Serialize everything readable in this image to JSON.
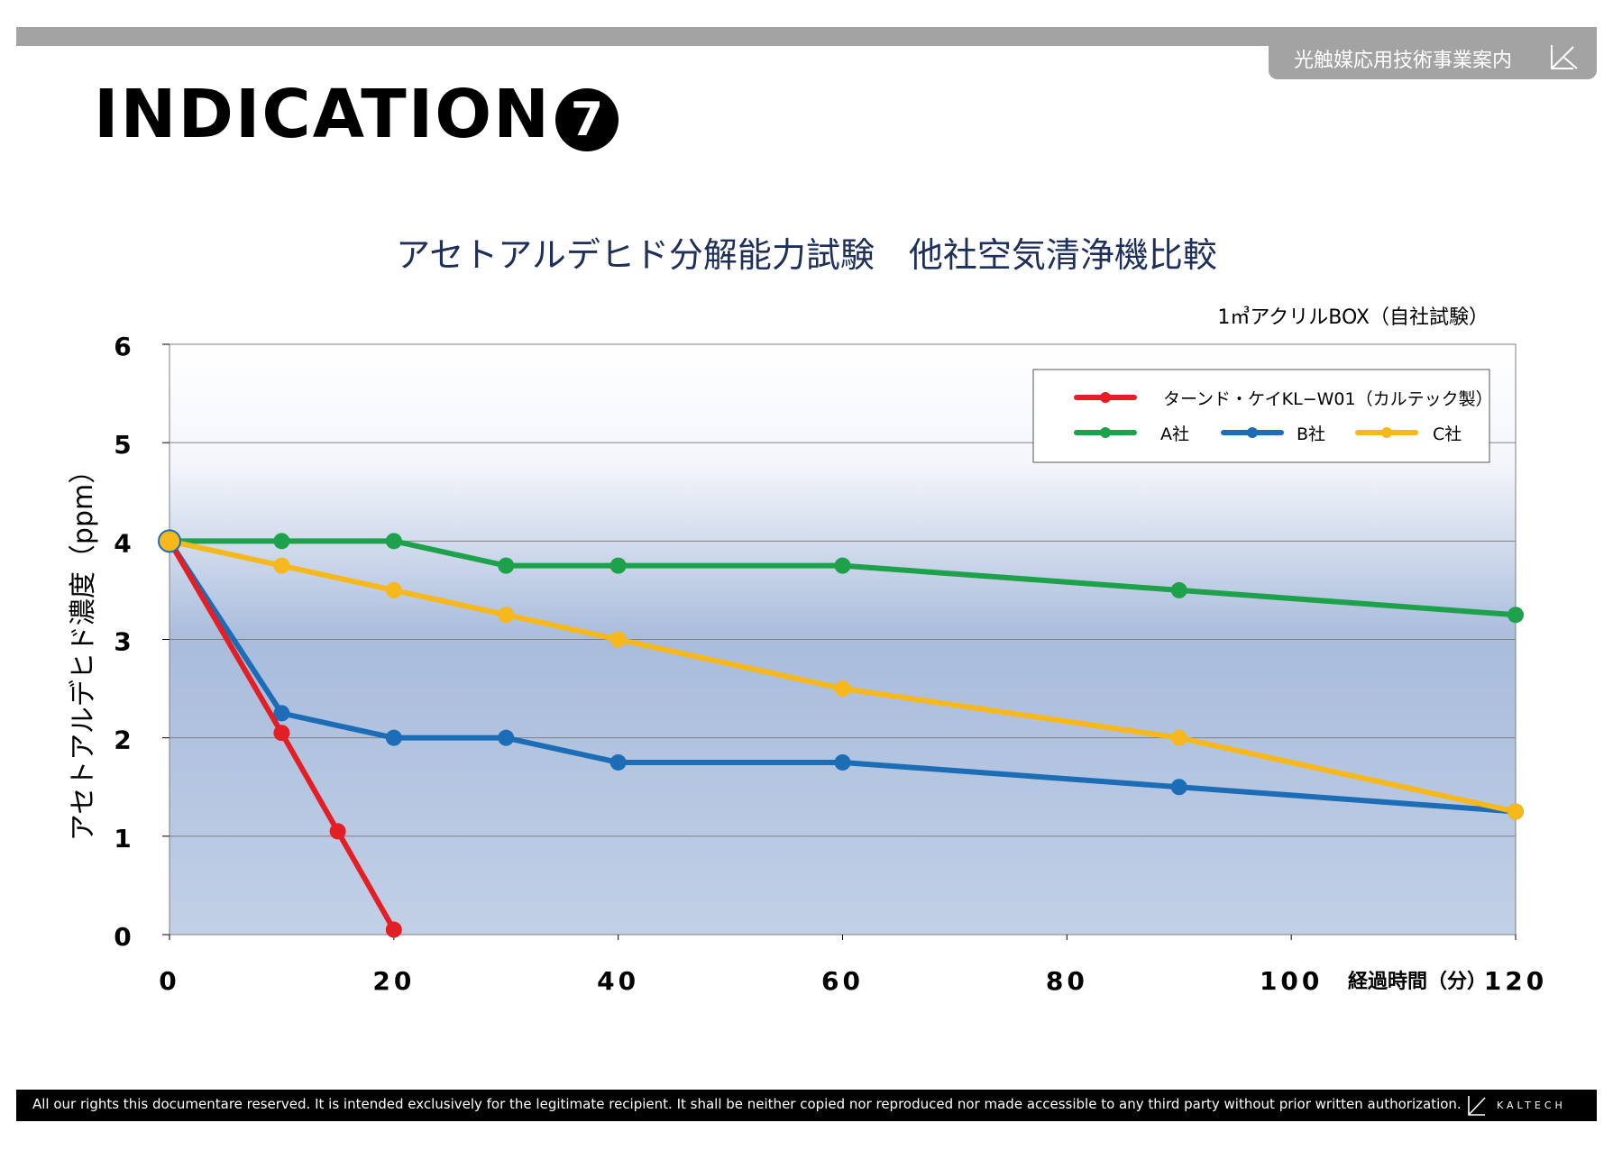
{
  "header": {
    "tab_label": "光触媒応用技術事業案内",
    "title": "INDICATION",
    "badge": "7"
  },
  "chart_data": {
    "type": "line",
    "title": "アセトアルデヒド分解能力試験　他社空気清浄機比較",
    "note": "1㎥アクリルBOX（自社試験）",
    "ylabel": "アセトアルデヒド濃度（ppm）",
    "xlabel": "経過時間（分）",
    "xlim": [
      0,
      120
    ],
    "ylim": [
      0,
      6
    ],
    "xticks": [
      0,
      20,
      40,
      60,
      80,
      100,
      120
    ],
    "yticks": [
      0,
      1,
      2,
      3,
      4,
      5,
      6
    ],
    "grid": true,
    "legend": "top-right",
    "series": [
      {
        "name": "ターンド・ケイKL−W01（カルテック製）",
        "color": "#e31e24",
        "x": [
          0,
          10,
          15,
          20
        ],
        "y": [
          4.0,
          2.05,
          1.05,
          0.05
        ]
      },
      {
        "name": "A社",
        "color": "#1da14b",
        "x": [
          0,
          10,
          20,
          30,
          40,
          60,
          90,
          120
        ],
        "y": [
          4.0,
          4.0,
          4.0,
          3.75,
          3.75,
          3.75,
          3.5,
          3.25
        ]
      },
      {
        "name": "B社",
        "color": "#1c6db5",
        "x": [
          0,
          10,
          20,
          30,
          40,
          60,
          90,
          120
        ],
        "y": [
          4.0,
          2.25,
          2.0,
          2.0,
          1.75,
          1.75,
          1.5,
          1.25
        ]
      },
      {
        "name": "C社",
        "color": "#f6b81c",
        "x": [
          0,
          10,
          20,
          30,
          40,
          60,
          90,
          120
        ],
        "y": [
          4.0,
          3.75,
          3.5,
          3.25,
          3.0,
          2.5,
          2.0,
          1.25
        ]
      }
    ]
  },
  "footer": {
    "notice": "All our rights this documentare reserved. It is intended exclusively for the legitimate recipient. It shall be neither copied nor reproduced nor made accessible to any third party without prior written authorization.",
    "brand": "KALTECH"
  }
}
